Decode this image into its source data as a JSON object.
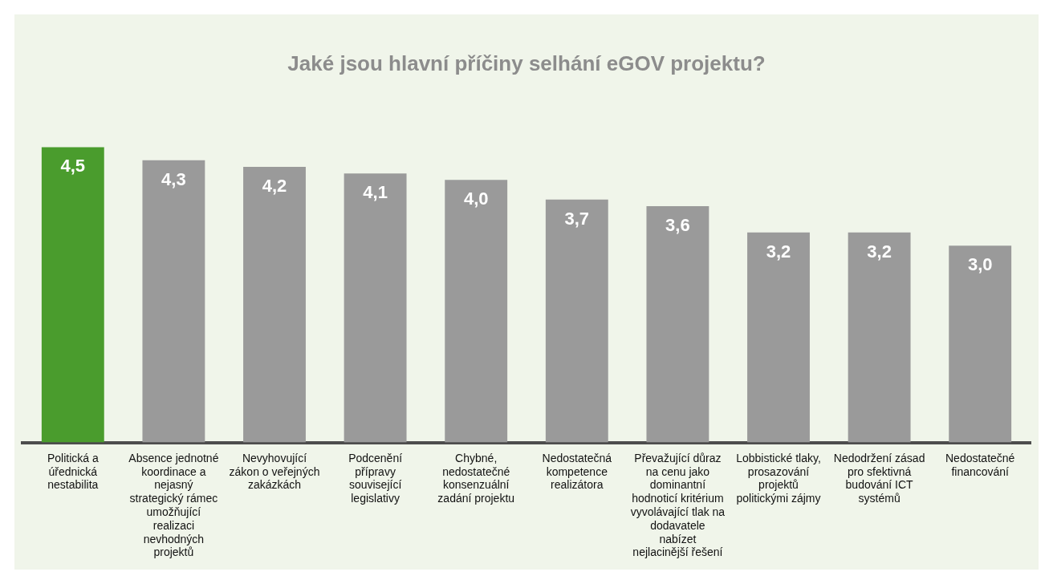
{
  "chart_data": {
    "type": "bar",
    "title": "Jaké jsou hlavní příčiny selhání eGOV projektu?",
    "categories": [
      "Politická a úřednická nestabilita",
      "Absence jednotné koordinace a nejasný strategický rámec umožňující realizaci nevhodných projektů",
      "Nevyhovující zákon o veřejných zakázkách",
      "Podcenění přípravy související legislativy",
      "Chybné, nedostatečné konsenzuální zadání projektu",
      "Nedostatečná kompetence realizátora",
      "Převažující důraz na cenu jako dominantní hodnoticí kritérium vyvolávající tlak na dodavatele nabízet nejlacinější řešení",
      "Lobbistické tlaky, prosazování projektů politickými zájmy",
      "Nedodržení zásad pro sfektivná budování ICT systémů",
      "Nedostatečné financování"
    ],
    "values": [
      4.5,
      4.3,
      4.2,
      4.1,
      4.0,
      3.7,
      3.6,
      3.2,
      3.2,
      3.0
    ],
    "value_labels": [
      "4,5",
      "4,3",
      "4,2",
      "4,1",
      "4,0",
      "3,7",
      "3,6",
      "3,2",
      "3,2",
      "3,0"
    ],
    "colors": [
      "#4a9c2d",
      "#9a9a9a",
      "#9a9a9a",
      "#9a9a9a",
      "#9a9a9a",
      "#9a9a9a",
      "#9a9a9a",
      "#9a9a9a",
      "#9a9a9a",
      "#9a9a9a"
    ],
    "grid": false,
    "legend": false
  }
}
